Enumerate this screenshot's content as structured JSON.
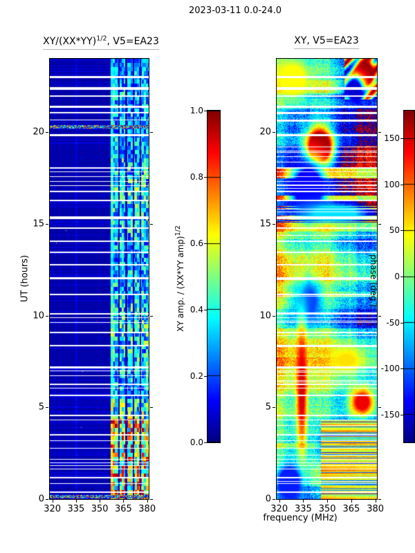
{
  "figure_title": "2023-03-11 0.0-24.0",
  "chart_data": [
    {
      "type": "heatmap",
      "panel": "cross-hand amplitude ratio",
      "title": "XY/(XX*YY)^(1/2), V5=EA23",
      "title_parts": {
        "pre": "XY/(XX*YY)",
        "sup": "1/2",
        "post": ", V5=EA23"
      },
      "xlabel": "",
      "ylabel": "UT (hours)",
      "xlim": [
        318.4,
        381.0
      ],
      "ylim": [
        0,
        24
      ],
      "xticks": [
        320,
        335,
        350,
        365,
        380
      ],
      "yticks": [
        0,
        5,
        10,
        15,
        20
      ],
      "colormap": "jet",
      "colorbar": {
        "label": "XY amp. / (XX*YY amp)^(1/2)",
        "label_parts": {
          "pre": "XY amp. / (XX*YY amp)",
          "sup": "1/2"
        },
        "ticks": [
          "1.0",
          "0.8",
          "0.6",
          "0.4",
          "0.2",
          "0.0"
        ],
        "vmin": 0.0,
        "vmax": 1.0
      },
      "background_amplitude": 0.04,
      "rfi_band": {
        "freq_range": [
          357,
          381
        ],
        "gaps_mhz": [
          362.3,
          367.0,
          371.6,
          375.9
        ],
        "amp_range_hours_0_to_4": [
          0.3,
          0.95
        ],
        "amp_range_hours_4_to_24": [
          0.12,
          0.52
        ],
        "transition_hour": 4.4
      },
      "faint_vline_mhz": 335,
      "broadband_rows_hours": [
        20.3,
        0.15
      ],
      "flagged_times": [
        [
          23.05,
          3
        ],
        [
          22.45,
          4
        ],
        [
          22.0,
          2
        ],
        [
          21.45,
          3
        ],
        [
          21.1,
          2
        ],
        [
          20.7,
          1
        ],
        [
          19.9,
          3
        ],
        [
          18.1,
          2
        ],
        [
          17.85,
          1
        ],
        [
          17.6,
          1
        ],
        [
          17.35,
          1
        ],
        [
          17.1,
          1
        ],
        [
          16.8,
          2
        ],
        [
          16.3,
          2
        ],
        [
          15.4,
          4
        ],
        [
          14.8,
          2
        ],
        [
          14.1,
          2
        ],
        [
          13.5,
          2
        ],
        [
          12.8,
          2
        ],
        [
          12.1,
          3
        ],
        [
          11.2,
          2
        ],
        [
          10.15,
          2
        ],
        [
          9.9,
          1
        ],
        [
          9.65,
          1
        ],
        [
          9.1,
          2
        ],
        [
          8.4,
          2
        ],
        [
          7.25,
          3
        ],
        [
          7.0,
          1
        ],
        [
          6.75,
          1
        ],
        [
          6.3,
          2
        ],
        [
          6.05,
          1
        ],
        [
          5.7,
          2
        ],
        [
          4.6,
          2
        ],
        [
          4.35,
          1
        ],
        [
          3.55,
          2
        ],
        [
          3.2,
          1
        ],
        [
          2.8,
          1
        ],
        [
          2.2,
          1
        ],
        [
          2.0,
          1
        ],
        [
          1.85,
          1
        ],
        [
          1.65,
          1
        ],
        [
          1.2,
          2
        ],
        [
          0.85,
          1
        ],
        [
          0.4,
          2
        ]
      ]
    },
    {
      "type": "heatmap",
      "panel": "cross-hand phase",
      "title": "XY, V5=EA23",
      "xlabel": "frequency (MHz)",
      "ylabel": "",
      "xlim": [
        318.4,
        381.0
      ],
      "ylim": [
        0,
        24
      ],
      "xticks": [
        320,
        335,
        350,
        365,
        380
      ],
      "yticks": [
        0,
        5,
        10,
        15,
        20
      ],
      "colormap": "jet",
      "colorbar": {
        "label": "phase (deg.)",
        "ticks": [
          150,
          100,
          50,
          0,
          -50,
          -100,
          -150
        ],
        "vmin": -180,
        "vmax": 180
      },
      "phase_patches": [
        [
          328,
          22.9,
          10,
          1.0,
          45,
          1.2
        ],
        [
          345,
          19.2,
          8,
          1.0,
          175,
          1.3
        ],
        [
          338,
          16.9,
          11,
          1.5,
          -135,
          1.2
        ],
        [
          374,
          23.2,
          6,
          0.8,
          170,
          1.2
        ],
        [
          367,
          22.3,
          6,
          0.7,
          -150,
          1.1
        ],
        [
          355,
          15.6,
          22,
          0.55,
          -55,
          1.0
        ],
        [
          338,
          10.8,
          9,
          1.2,
          -110,
          0.9
        ],
        [
          362,
          7.6,
          13,
          0.8,
          55,
          0.8
        ],
        [
          334,
          6.0,
          3.5,
          3.5,
          150,
          0.8
        ],
        [
          352,
          2.9,
          6,
          1.0,
          -140,
          1.0
        ],
        [
          326,
          0.9,
          8,
          1.0,
          -125,
          1.3
        ],
        [
          372,
          5.3,
          8,
          0.8,
          140,
          0.9
        ]
      ],
      "bottom_streaks": {
        "hours_max": 4.35,
        "freq_min": 346,
        "phase_range": [
          60,
          160
        ]
      },
      "top_swirl": {
        "hours_min": 21.8,
        "freq_min": 361
      },
      "extra_thin_flag_count": 26,
      "flagged_times": [
        [
          23.05,
          3
        ],
        [
          22.45,
          4
        ],
        [
          22.0,
          2
        ],
        [
          21.45,
          3
        ],
        [
          21.1,
          2
        ],
        [
          20.7,
          1
        ],
        [
          19.9,
          3
        ],
        [
          18.1,
          2
        ],
        [
          17.85,
          1
        ],
        [
          17.6,
          1
        ],
        [
          17.35,
          1
        ],
        [
          17.1,
          1
        ],
        [
          16.8,
          2
        ],
        [
          16.3,
          2
        ],
        [
          15.4,
          4
        ],
        [
          14.8,
          2
        ],
        [
          14.1,
          2
        ],
        [
          13.5,
          2
        ],
        [
          12.8,
          2
        ],
        [
          12.1,
          3
        ],
        [
          11.2,
          2
        ],
        [
          10.15,
          2
        ],
        [
          9.9,
          1
        ],
        [
          9.65,
          1
        ],
        [
          9.1,
          2
        ],
        [
          8.4,
          2
        ],
        [
          7.25,
          3
        ],
        [
          7.0,
          1
        ],
        [
          6.75,
          1
        ],
        [
          6.3,
          2
        ],
        [
          6.05,
          1
        ],
        [
          5.7,
          2
        ],
        [
          4.6,
          2
        ],
        [
          4.35,
          1
        ],
        [
          3.55,
          2
        ],
        [
          3.2,
          1
        ],
        [
          2.8,
          1
        ],
        [
          2.2,
          1
        ],
        [
          2.0,
          1
        ],
        [
          1.85,
          1
        ],
        [
          1.65,
          1
        ],
        [
          1.2,
          2
        ],
        [
          0.85,
          1
        ],
        [
          0.4,
          2
        ]
      ]
    }
  ]
}
